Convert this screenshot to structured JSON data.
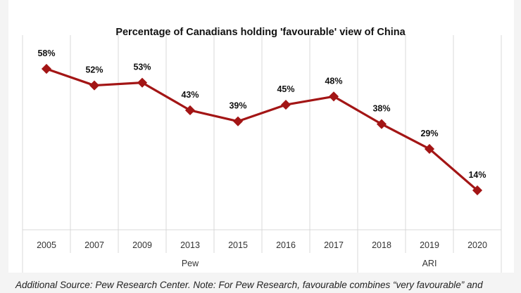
{
  "chart_data": {
    "type": "line",
    "title": "Percentage of Canadians holding 'favourable' view of China",
    "categories": [
      "2005",
      "2007",
      "2009",
      "2013",
      "2015",
      "2016",
      "2017",
      "2018",
      "2019",
      "2020"
    ],
    "values": [
      58,
      52,
      53,
      43,
      39,
      45,
      48,
      38,
      29,
      14
    ],
    "data_labels": [
      "58%",
      "52%",
      "53%",
      "43%",
      "39%",
      "45%",
      "48%",
      "38%",
      "29%",
      "14%"
    ],
    "groups": [
      {
        "label": "Pew",
        "count": 7
      },
      {
        "label": "ARI",
        "count": 3
      }
    ],
    "ylim": [
      0,
      70
    ],
    "grid": "vertical",
    "line_color": "#a31515"
  },
  "footnote": "Additional Source: Pew Research Center. Note: For Pew Research, favourable combines “very favourable” and"
}
